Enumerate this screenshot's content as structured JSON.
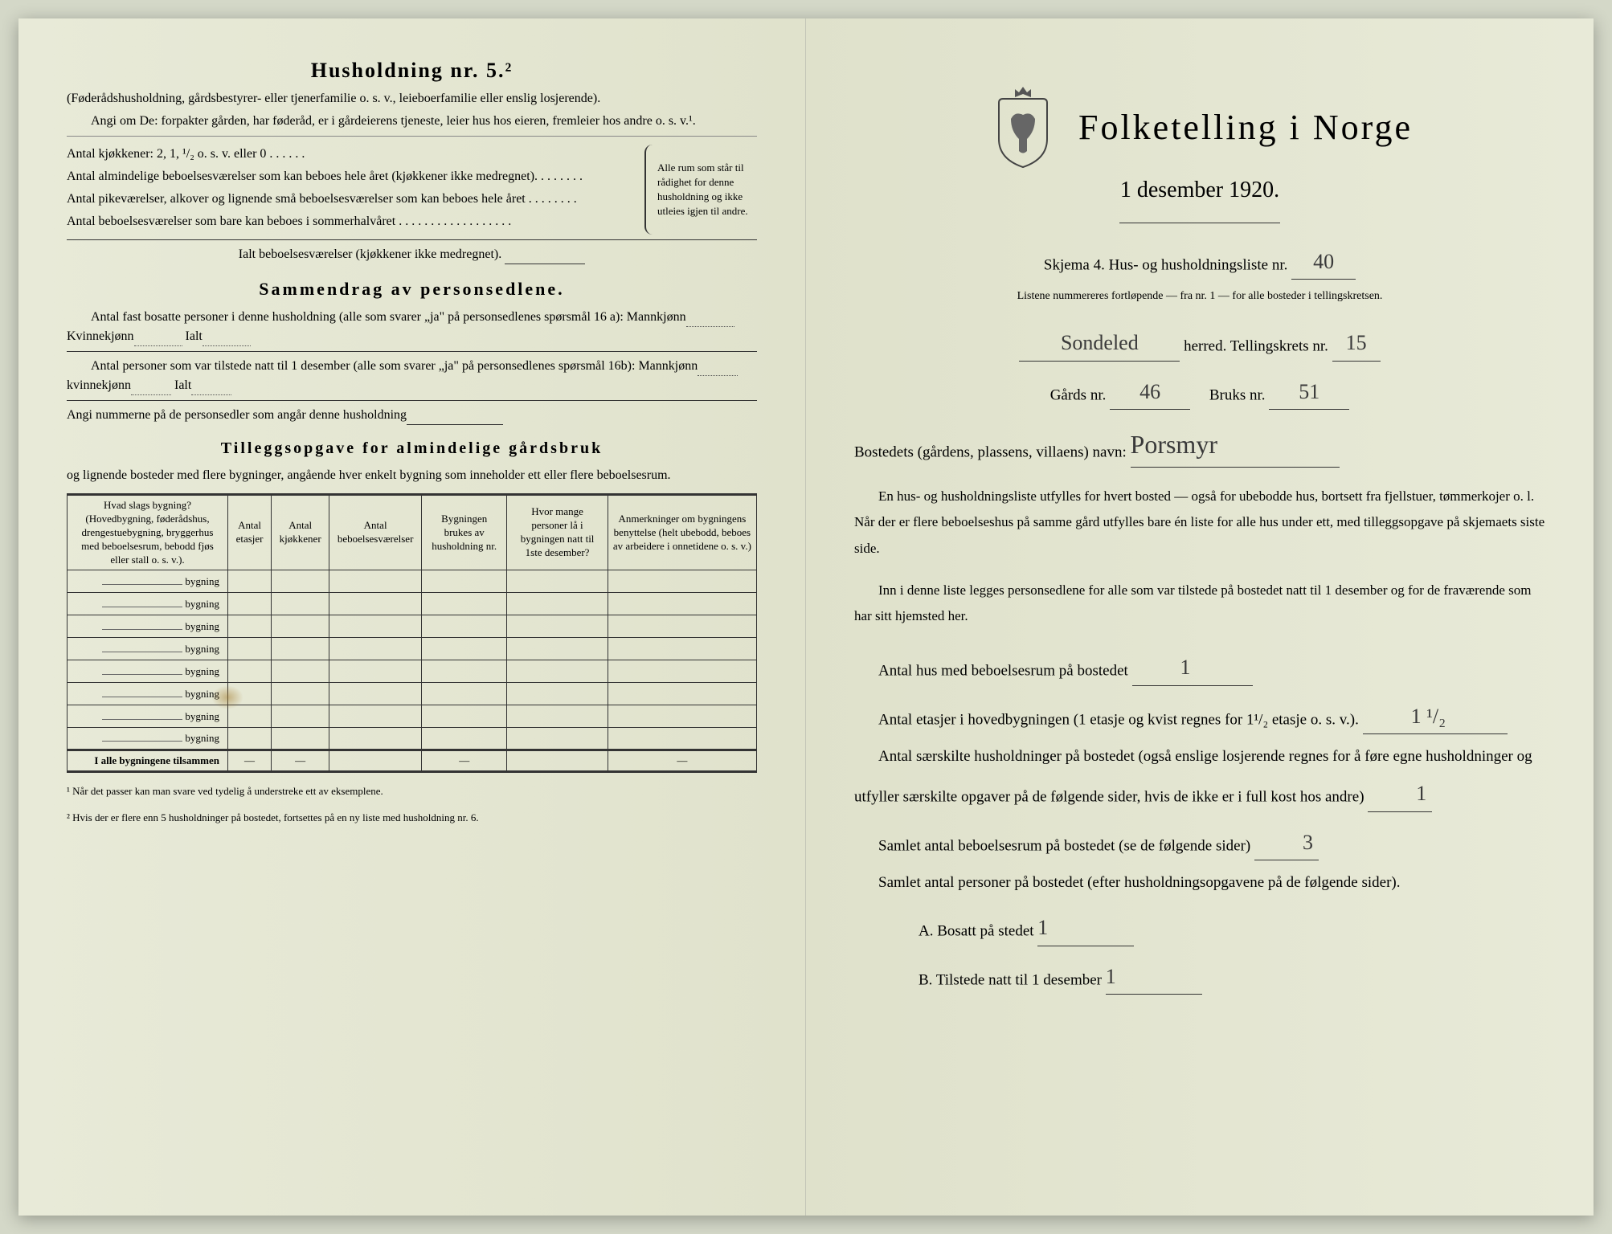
{
  "colors": {
    "paper": "#e8ead8",
    "ink": "#2a2a2a",
    "handwriting": "#3a3a3a",
    "background": "#d4d8c8"
  },
  "left": {
    "heading": "Husholdning nr. 5.²",
    "intro1": "(Føderådshusholdning, gårdsbestyrer- eller tjenerfamilie o. s. v., leieboerfamilie eller enslig losjerende).",
    "intro2": "Angi om De:  forpakter gården, har føderåd, er i gårdeierens tjeneste, leier hus hos eieren, fremleier hos andre o. s. v.¹.",
    "k_line": "Antal kjøkkener: 2, 1, ¹/₂ o. s. v. eller 0 . . . . . .",
    "rooms1": "Antal almindelige beboelsesværelser som kan beboes hele året (kjøkkener ikke medregnet). . . . . . . .",
    "rooms2": "Antal pikeværelser, alkover og lignende små beboelsesværelser som kan beboes hele året . . . . . . . .",
    "rooms3": "Antal beboelsesværelser som bare kan beboes i sommerhalvåret . . . . . . . . . . . . . . . . . .",
    "rooms_total": "Ialt beboelsesværelser (kjøkkener ikke medregnet).",
    "bracket_note": "Alle rum som står til rådighet for denne husholdning og ikke utleies igjen til andre.",
    "summary_title": "Sammendrag av personsedlene.",
    "summary1a": "Antal fast bosatte personer i denne husholdning (alle som svarer „ja\" på personsedlenes spørsmål 16 a): Mannkjønn",
    "summary1b": "Kvinnekjønn",
    "summary1c": "Ialt",
    "summary2a": "Antal personer som var tilstede natt til 1 desember (alle som svarer „ja\" på personsedlenes spørsmål 16b): Mannkjønn",
    "summary2b": "kvinnekjønn",
    "summary2c": "Ialt",
    "summary3": "Angi nummerne på de personsedler som angår denne husholdning",
    "tillegg_title": "Tilleggsopgave for almindelige gårdsbruk",
    "tillegg_sub": "og lignende bosteder med flere bygninger, angående hver enkelt bygning som inneholder ett eller flere beboelsesrum.",
    "table": {
      "headers": [
        "Hvad slags bygning?\n(Hovedbygning, føderådshus, drengestuebygning, bryggerhus med beboelsesrum, bebodd fjøs eller stall o. s. v.).",
        "Antal etasjer",
        "Antal kjøkkener",
        "Antal beboelsesværelser",
        "Bygningen brukes av husholdning nr.",
        "Hvor mange personer lå i bygningen natt til 1ste desember?",
        "Anmerkninger om bygningens benyttelse (helt ubebodd, beboes av arbeidere i onnetidene o. s. v.)"
      ],
      "row_label": "bygning",
      "rows": 8,
      "total_label": "I alle bygningene tilsammen"
    },
    "footnote1": "¹  Når det passer kan man svare ved tydelig å understreke ett av eksemplene.",
    "footnote2": "²  Hvis der er flere enn 5 husholdninger på bostedet, fortsettes på en ny liste med husholdning nr. 6."
  },
  "right": {
    "title": "Folketelling i Norge",
    "date": "1 desember 1920.",
    "skjema_label": "Skjema 4.  Hus- og husholdningsliste nr.",
    "skjema_nr": "40",
    "listene": "Listene nummereres fortløpende — fra nr. 1 — for alle bosteder i tellingskretsen.",
    "herred_value": "Sondeled",
    "herred_label": "herred.   Tellingskrets nr.",
    "krets_nr": "15",
    "gards_label": "Gårds nr.",
    "gards_nr": "46",
    "bruks_label": "Bruks nr.",
    "bruks_nr": "51",
    "bosted_label": "Bostedets (gårdens, plassens, villaens) navn:",
    "bosted_value": "Porsmyr",
    "para1": "En hus- og husholdningsliste utfylles for hvert bosted — også for ubebodde hus, bortsett fra fjellstuer, tømmerkojer o. l.  Når der er flere beboelseshus på samme gård utfylles bare én liste for alle hus under ett, med tilleggsopgave på skjemaets siste side.",
    "para2": "Inn i denne liste legges personsedlene for alle som var tilstede på bostedet natt til 1 desember og for de fraværende som har sitt hjemsted her.",
    "q1_label": "Antal hus med beboelsesrum på bostedet",
    "q1_value": "1",
    "q2_label_a": "Antal etasjer i hovedbygningen (1 etasje og kvist regnes for 1¹/₂ etasje o. s. v.).",
    "q2_value": "1 ¹/₂",
    "q3_label": "Antal særskilte husholdninger på bostedet (også enslige losjerende regnes for å føre egne husholdninger og utfyller særskilte opgaver på de følgende sider, hvis de ikke er i full kost hos andre)",
    "q3_value": "1",
    "q4_label": "Samlet antal beboelsesrum på bostedet (se de følgende sider)",
    "q4_value": "3",
    "q5_label": "Samlet antal personer på bostedet (efter husholdningsopgavene på de følgende sider).",
    "qA_label": "A.  Bosatt på stedet",
    "qA_value": "1",
    "qB_label": "B.  Tilstede natt til 1 desember",
    "qB_value": "1"
  }
}
